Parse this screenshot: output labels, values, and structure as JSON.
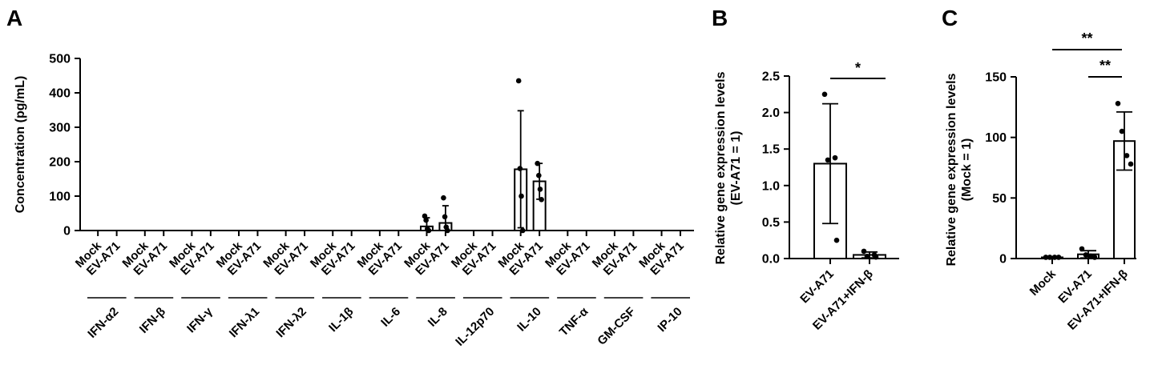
{
  "chart_data": [
    {
      "panel": "A",
      "type": "bar",
      "ylabel": "Concentration (pg/mL)",
      "ylim": [
        0,
        500
      ],
      "yticks": [
        0,
        100,
        200,
        300,
        400,
        500
      ],
      "conditions": [
        "Mock",
        "EV-A71"
      ],
      "groups": [
        {
          "name": "IFN-α2",
          "values": [
            0,
            0
          ],
          "err": [
            0,
            0
          ],
          "points": [
            [],
            []
          ]
        },
        {
          "name": "IFN-β",
          "values": [
            0,
            0
          ],
          "err": [
            0,
            0
          ],
          "points": [
            [],
            []
          ]
        },
        {
          "name": "IFN-γ",
          "values": [
            0,
            0
          ],
          "err": [
            0,
            0
          ],
          "points": [
            [],
            []
          ]
        },
        {
          "name": "IFN-λ1",
          "values": [
            0,
            0
          ],
          "err": [
            0,
            0
          ],
          "points": [
            [],
            []
          ]
        },
        {
          "name": "IFN-λ2",
          "values": [
            0,
            0
          ],
          "err": [
            0,
            0
          ],
          "points": [
            [],
            []
          ]
        },
        {
          "name": "IL-1β",
          "values": [
            0,
            0
          ],
          "err": [
            0,
            0
          ],
          "points": [
            [],
            []
          ]
        },
        {
          "name": "IL-6",
          "values": [
            0,
            0
          ],
          "err": [
            0,
            0
          ],
          "points": [
            [],
            []
          ]
        },
        {
          "name": "IL-8",
          "values": [
            12,
            22
          ],
          "err": [
            25,
            50
          ],
          "points": [
            [
              42,
              30,
              5,
              0
            ],
            [
              95,
              40,
              10,
              0
            ]
          ]
        },
        {
          "name": "IL-12p70",
          "values": [
            0,
            0
          ],
          "err": [
            0,
            0
          ],
          "points": [
            [],
            []
          ]
        },
        {
          "name": "IL-10",
          "values": [
            178,
            143
          ],
          "err": [
            170,
            52
          ],
          "points": [
            [
              435,
              180,
              100,
              0
            ],
            [
              195,
              160,
              120,
              90
            ]
          ]
        },
        {
          "name": "TNF-α",
          "values": [
            0,
            0
          ],
          "err": [
            0,
            0
          ],
          "points": [
            [],
            []
          ]
        },
        {
          "name": "GM-CSF",
          "values": [
            0,
            0
          ],
          "err": [
            0,
            0
          ],
          "points": [
            [],
            []
          ]
        },
        {
          "name": "IP-10",
          "values": [
            0,
            0
          ],
          "err": [
            0,
            0
          ],
          "points": [
            [],
            []
          ]
        }
      ]
    },
    {
      "panel": "B",
      "type": "bar",
      "ylabel": "Relative gene expression levels (EV-A71 = 1)",
      "ylim": [
        0,
        2.5
      ],
      "yticks": [
        "0.0",
        "0.5",
        "1.0",
        "1.5",
        "2.0",
        "2.5"
      ],
      "categories": [
        "EV-A71",
        "EV-A71+IFN-β"
      ],
      "values": [
        1.3,
        0.05
      ],
      "err": [
        0.82,
        0.04
      ],
      "points": [
        [
          2.25,
          1.38,
          1.35,
          0.25
        ],
        [
          0.1,
          0.05,
          0.03,
          0.02
        ]
      ],
      "significance": [
        {
          "from": 0,
          "to": 1,
          "label": "*"
        }
      ]
    },
    {
      "panel": "C",
      "type": "bar",
      "ylabel": "Relative gene expression levels (Mock = 1)",
      "ylim": [
        0,
        150
      ],
      "yticks": [
        0,
        50,
        100,
        150
      ],
      "categories": [
        "Mock",
        "EV-A71",
        "EV-A71+IFN-β"
      ],
      "values": [
        1,
        3.5,
        97
      ],
      "err": [
        0.5,
        3,
        24
      ],
      "points": [
        [
          1,
          1,
          1,
          1
        ],
        [
          8,
          3,
          2,
          1
        ],
        [
          128,
          105,
          85,
          78
        ]
      ],
      "significance": [
        {
          "from": 0,
          "to": 2,
          "label": "**"
        },
        {
          "from": 1,
          "to": 2,
          "label": "**"
        }
      ]
    }
  ]
}
